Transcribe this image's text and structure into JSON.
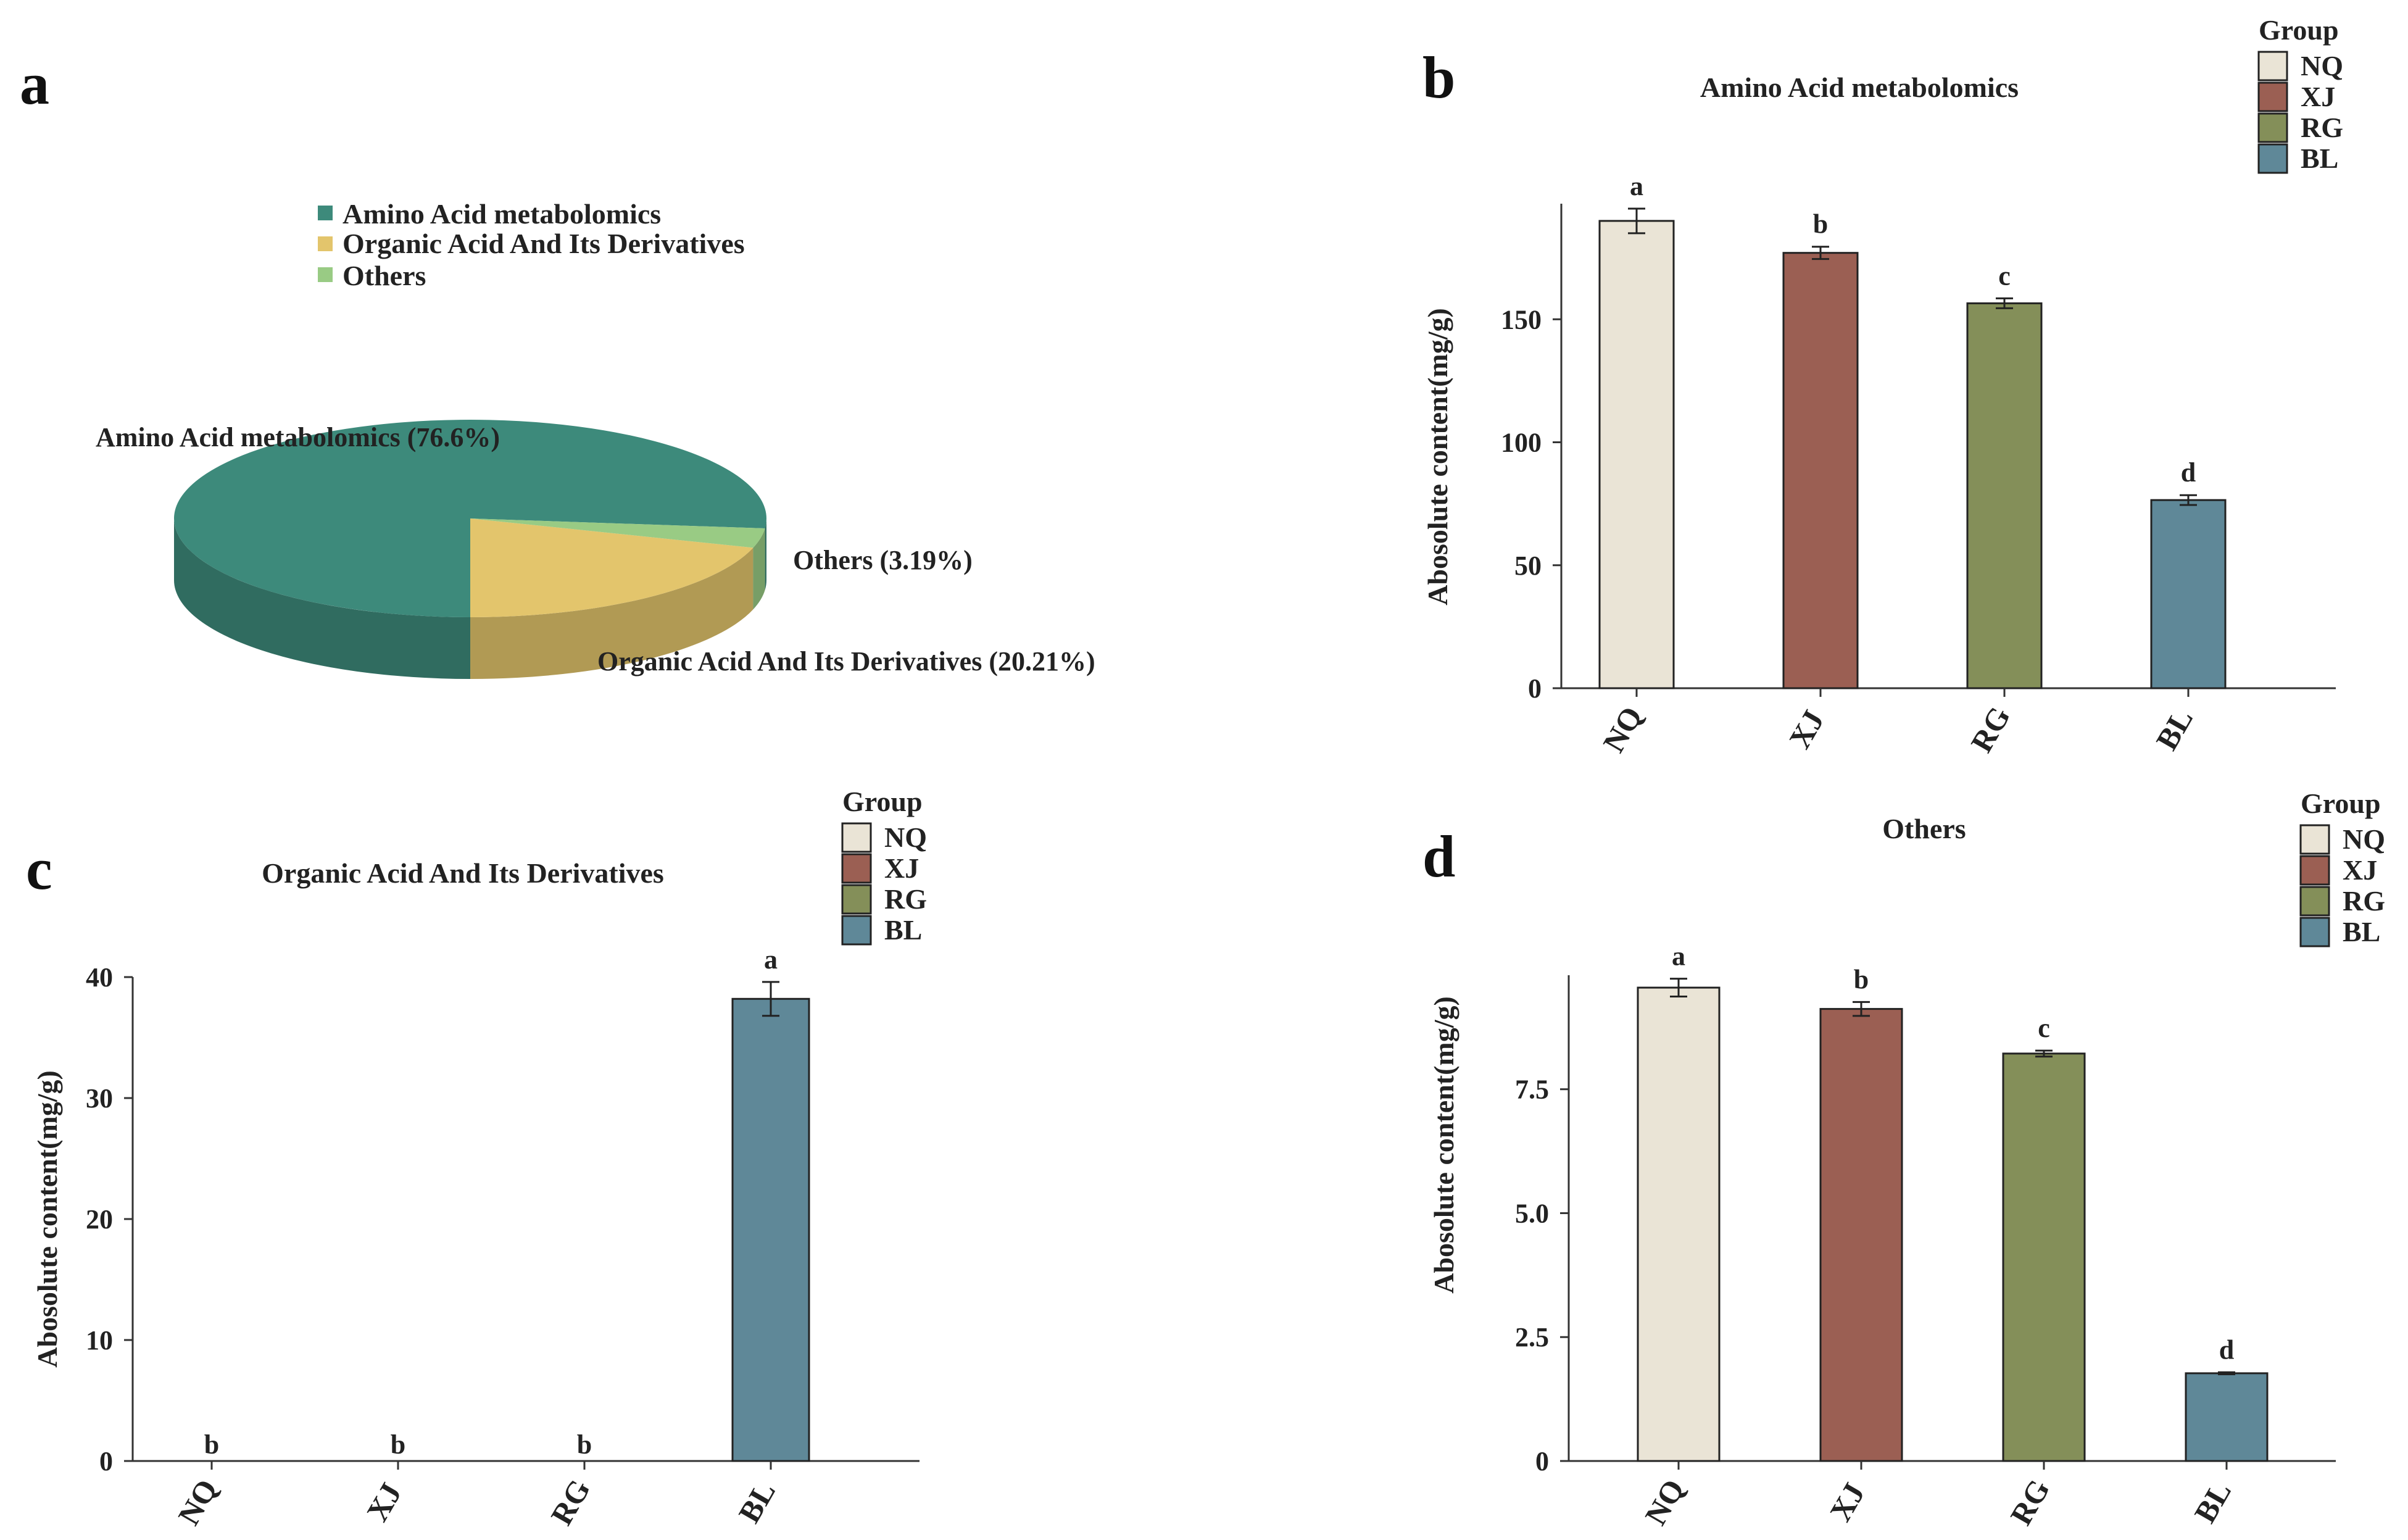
{
  "colors": {
    "NQ": "#eae4d6",
    "XJ": "#9b5f53",
    "RG": "#848f59",
    "BL": "#5f8898",
    "pie_amino": "#3d8a7b",
    "pie_organic": "#e3c56c",
    "pie_others": "#99cb84"
  },
  "panels": {
    "a": "a",
    "b": "b",
    "c": "c",
    "d": "d"
  },
  "legend_group": {
    "title": "Group",
    "items": [
      "NQ",
      "XJ",
      "RG",
      "BL"
    ]
  },
  "chart_data": [
    {
      "panel": "a",
      "type": "pie",
      "title": "",
      "categories": [
        "Amino Acid metabolomics",
        "Organic Acid And Its Derivatives",
        "Others"
      ],
      "values": [
        76.6,
        20.21,
        3.19
      ],
      "slice_labels": [
        "Amino Acid metabolomics (76.6%)",
        "Organic Acid And Its Derivatives (20.21%)",
        "Others (3.19%)"
      ],
      "legend": [
        "Amino Acid metabolomics",
        "Organic Acid And Its Derivatives",
        "Others"
      ],
      "legend_position": "top"
    },
    {
      "panel": "b",
      "type": "bar",
      "title": "Amino Acid metabolomics",
      "xlabel": "",
      "ylabel": "Abosolute content(mg/g)",
      "categories": [
        "NQ",
        "XJ",
        "RG",
        "BL"
      ],
      "values": [
        190,
        177,
        156.5,
        76.5
      ],
      "errors": [
        5,
        2.5,
        2,
        2
      ],
      "significance": [
        "a",
        "b",
        "c",
        "d"
      ],
      "ylim": [
        0,
        197
      ],
      "yticks": [
        0,
        50,
        100,
        150
      ],
      "ytick_labels": [
        "0",
        "50",
        "100",
        "150"
      ],
      "legend_position": "top-right"
    },
    {
      "panel": "c",
      "type": "bar",
      "title": "Organic Acid And Its Derivatives",
      "xlabel": "",
      "ylabel": "Abosolute content(mg/g)",
      "categories": [
        "NQ",
        "XJ",
        "RG",
        "BL"
      ],
      "values": [
        0,
        0,
        0,
        38.2
      ],
      "errors": [
        0,
        0,
        0,
        1.4
      ],
      "significance": [
        "b",
        "b",
        "b",
        "a"
      ],
      "ylim": [
        0,
        40
      ],
      "yticks": [
        0,
        10,
        20,
        30,
        40
      ],
      "ytick_labels": [
        "0",
        "10",
        "20",
        "30",
        "40"
      ],
      "legend_position": "top-right"
    },
    {
      "panel": "d",
      "type": "bar",
      "title": "Others",
      "xlabel": "",
      "ylabel": "Abosolute content(mg/g)",
      "categories": [
        "NQ",
        "XJ",
        "RG",
        "BL"
      ],
      "values": [
        9.55,
        9.12,
        8.22,
        1.77
      ],
      "errors": [
        0.18,
        0.14,
        0.06,
        0.02
      ],
      "significance": [
        "a",
        "b",
        "c",
        "d"
      ],
      "ylim": [
        0,
        9.8
      ],
      "yticks": [
        0,
        2.5,
        5.0,
        7.5
      ],
      "ytick_labels": [
        "0",
        "2.5",
        "5.0",
        "7.5"
      ],
      "legend_position": "top-right"
    }
  ]
}
